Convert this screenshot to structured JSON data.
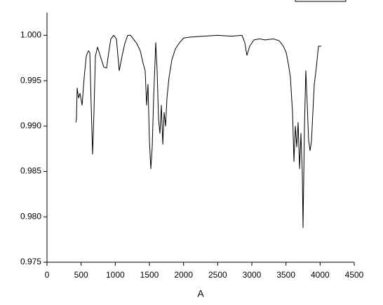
{
  "chart_data": {
    "type": "line",
    "x_label": "A",
    "xlim": [
      0,
      4500
    ],
    "xticks": [
      0,
      500,
      1000,
      1500,
      2000,
      2500,
      3000,
      3500,
      4000,
      4500
    ],
    "ylim": [
      0.975,
      1.0025
    ],
    "yticks": [
      {
        "value": 0.975,
        "label": "0.975"
      },
      {
        "value": 0.98,
        "label": "0.980"
      },
      {
        "value": 0.985,
        "label": "0.985"
      },
      {
        "value": 0.99,
        "label": "0.990"
      },
      {
        "value": 0.995,
        "label": "0.995"
      },
      {
        "value": 1.0,
        "label": "1.000"
      }
    ],
    "grid": false,
    "series": [
      {
        "color": "#000000",
        "x": [
          421,
          431,
          442,
          462,
          483,
          514,
          545,
          575,
          606,
          627,
          647,
          668,
          688,
          709,
          740,
          781,
          832,
          873,
          904,
          935,
          976,
          1017,
          1058,
          1099,
          1140,
          1182,
          1223,
          1264,
          1315,
          1366,
          1408,
          1438,
          1459,
          1479,
          1500,
          1521,
          1541,
          1562,
          1593,
          1613,
          1634,
          1654,
          1675,
          1696,
          1716,
          1737,
          1757,
          1788,
          1829,
          1880,
          1942,
          2003,
          2086,
          2291,
          2497,
          2702,
          2856,
          2897,
          2928,
          2969,
          3031,
          3113,
          3195,
          3319,
          3401,
          3462,
          3503,
          3534,
          3565,
          3596,
          3617,
          3637,
          3658,
          3678,
          3699,
          3719,
          3740,
          3750,
          3771,
          3791,
          3812,
          3832,
          3853,
          3874,
          3894,
          3915,
          3945,
          3976,
          4017
        ],
        "values": [
          0.9904,
          0.9907,
          0.9942,
          0.9931,
          0.9936,
          0.9923,
          0.9954,
          0.9977,
          0.9983,
          0.9981,
          0.9923,
          0.9869,
          0.9915,
          0.9977,
          0.9987,
          0.9977,
          0.9965,
          0.9964,
          0.9981,
          0.9996,
          1.0,
          0.9996,
          0.9961,
          0.9977,
          0.9991,
          1.0,
          1.0,
          0.9996,
          0.9991,
          0.9983,
          0.9969,
          0.9961,
          0.9923,
          0.9946,
          0.9884,
          0.9853,
          0.9877,
          0.9931,
          0.9992,
          0.9961,
          0.9907,
          0.9892,
          0.9923,
          0.988,
          0.9915,
          0.99,
          0.9931,
          0.9954,
          0.9973,
          0.9985,
          0.9992,
          0.9997,
          0.9998,
          0.9999,
          1.0,
          0.9999,
          1.0,
          0.9992,
          0.9978,
          0.9988,
          0.9995,
          0.9996,
          0.9995,
          0.9996,
          0.9994,
          0.9988,
          0.9981,
          0.9969,
          0.9954,
          0.9915,
          0.9861,
          0.99,
          0.9877,
          0.9904,
          0.9853,
          0.9892,
          0.9846,
          0.9788,
          0.99,
          0.9961,
          0.9923,
          0.9884,
          0.9873,
          0.9884,
          0.9915,
          0.9946,
          0.9965,
          0.9988,
          0.9988
        ]
      }
    ]
  }
}
